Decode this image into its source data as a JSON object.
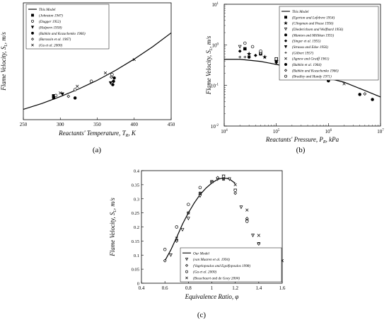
{
  "chart_data": [
    {
      "type": "scatter",
      "panel_label": "(a)",
      "xlabel": "Reactants' Temperature, T",
      "xlabel_sub": "R",
      "xlabel_unit": ", K",
      "ylabel": "Flame Velocity, S",
      "ylabel_sub": "L",
      "ylabel_unit": ", m/s",
      "xlim": [
        250,
        450
      ],
      "ylim": [
        0.2,
        0.9
      ],
      "xticks": [
        "250",
        "300",
        "350",
        "400",
        "450"
      ],
      "legend_position": "top-left",
      "series": [
        {
          "name": "This Model",
          "kind": "line",
          "x": [
            250,
            275,
            300,
            325,
            350,
            375,
            400,
            425,
            450
          ],
          "y": [
            0.262,
            0.297,
            0.338,
            0.384,
            0.436,
            0.496,
            0.563,
            0.637,
            0.72
          ]
        },
        {
          "name": "(Johnston 1947)",
          "marker": "square",
          "x": [
            291
          ],
          "y": [
            0.343
          ]
        },
        {
          "name": "(Dugger 1952)",
          "marker": "circle-open",
          "x": [
            294,
            320,
            342,
            370
          ],
          "y": [
            0.345,
            0.38,
            0.43,
            0.47
          ]
        },
        {
          "name": "(Halpern 1958)",
          "marker": "triangle-down",
          "x": [
            303,
            368
          ],
          "y": [
            0.353,
            0.42
          ]
        },
        {
          "name": "(Babkin and Kozachenko 1966)",
          "marker": "circle-filled",
          "x": [
            291,
            320,
            371,
            372,
            373
          ],
          "y": [
            0.33,
            0.33,
            0.41,
            0.43,
            0.45
          ]
        },
        {
          "name": "(Barassin et al. 1967)",
          "marker": "diamond-open",
          "x": [
            311,
            369
          ],
          "y": [
            0.34,
            0.455
          ]
        },
        {
          "name": "(Gu et al. 2000)",
          "marker": "x",
          "x": [
            300,
            323,
            361,
            400
          ],
          "y": [
            0.36,
            0.4,
            0.48,
            0.56
          ]
        }
      ]
    },
    {
      "type": "scatter",
      "panel_label": "(b)",
      "xlabel": "Reactants' Pressure, P",
      "xlabel_sub": "R",
      "xlabel_unit": ", kPa",
      "ylabel": "Flame Velocity, S",
      "ylabel_sub": "L",
      "ylabel_unit": ", m/s",
      "xscale": "log",
      "yscale": "log",
      "xlim": [
        10000,
        10000000
      ],
      "ylim": [
        0.01,
        10
      ],
      "xtick_exponents": [
        "4",
        "5",
        "6",
        "7"
      ],
      "ytick_exponents": [
        "-2",
        "-1",
        "0",
        "1"
      ],
      "legend_position": "top-right",
      "series": [
        {
          "name": "This Model",
          "kind": "line",
          "x": [
            10000,
            20000,
            50000,
            100000,
            200000,
            500000,
            1000000,
            2000000,
            5000000,
            10000000
          ],
          "y": [
            0.44,
            0.44,
            0.39,
            0.33,
            0.27,
            0.2,
            0.15,
            0.12,
            0.075,
            0.052
          ]
        },
        {
          "name": "(Egerton and Lefebvre 1954)",
          "marker": "square",
          "x": [
            25000,
            50000,
            100000,
            300000
          ],
          "y": [
            0.8,
            0.6,
            0.45,
            0.3
          ]
        },
        {
          "name": "(Clingman and Pease 1956)",
          "marker": "star",
          "x": [
            30000,
            60000,
            100000
          ],
          "y": [
            0.6,
            0.5,
            0.4
          ]
        },
        {
          "name": "(Diederichsen and Wolfhard 1956)",
          "marker": "triangle-down-open",
          "x": [
            20000,
            50000,
            100000
          ],
          "y": [
            0.9,
            0.6,
            0.45
          ]
        },
        {
          "name": "(Manton and Millikan 1955)",
          "marker": "circle-filled",
          "x": [
            30000,
            100000
          ],
          "y": [
            0.5,
            0.38
          ]
        },
        {
          "name": "(Singer et al. 1955)",
          "marker": "diamond-filled",
          "x": [
            20000,
            40000
          ],
          "y": [
            0.7,
            0.55
          ]
        },
        {
          "name": "(Strauss and Edse 1956)",
          "marker": "triangle-down",
          "x": [
            300000,
            1000000
          ],
          "y": [
            0.25,
            0.14
          ]
        },
        {
          "name": "(Gilbert 1957)",
          "marker": "plus",
          "x": [
            20000,
            25000
          ],
          "y": [
            0.5,
            0.5
          ]
        },
        {
          "name": "(Agnew and Graiff 1961)",
          "marker": "x",
          "x": [
            100000,
            500000,
            2000000
          ],
          "y": [
            0.35,
            0.2,
            0.11
          ]
        },
        {
          "name": "(Babkin et al. 1964)",
          "marker": "circle-filled",
          "x": [
            500000,
            1000000,
            4000000,
            7000000
          ],
          "y": [
            0.2,
            0.13,
            0.06,
            0.045
          ]
        },
        {
          "name": "(Babkin and Kozachenko 1966)",
          "marker": "diamond-open",
          "x": [
            200000,
            1000000,
            5000000
          ],
          "y": [
            0.32,
            0.14,
            0.062
          ]
        },
        {
          "name": "(Bradley and Hundy 1971)",
          "marker": "circle-open",
          "x": [
            25000,
            35000,
            50000,
            100000
          ],
          "y": [
            1.1,
            0.9,
            0.7,
            0.45
          ]
        }
      ]
    },
    {
      "type": "scatter",
      "panel_label": "(c)",
      "xlabel": "Equivalence Ratio, φ",
      "ylabel": "Flame Velocity, S",
      "ylabel_sub": "L",
      "ylabel_unit": ", m/s",
      "xlim": [
        0.4,
        1.6
      ],
      "ylim": [
        0,
        0.4
      ],
      "xticks": [
        "0.4",
        "0.6",
        "0.8",
        "1",
        "1.2",
        "1.4",
        "1.6"
      ],
      "yticks": [
        "0",
        "0.05",
        "0.1",
        "0.15",
        "0.2",
        "0.25",
        "0.3",
        "0.35",
        "0.4"
      ],
      "legend_position": "bottom-center",
      "series": [
        {
          "name": "Our Model",
          "kind": "line",
          "x": [
            0.6,
            0.65,
            0.7,
            0.75,
            0.8,
            0.85,
            0.9,
            0.95,
            1.0,
            1.05,
            1.1,
            1.15,
            1.2
          ],
          "y": [
            0.08,
            0.118,
            0.163,
            0.21,
            0.25,
            0.285,
            0.315,
            0.338,
            0.356,
            0.369,
            0.375,
            0.37,
            0.355
          ]
        },
        {
          "name": "(van Maaren et al. 1994)",
          "marker": "triangle-down-open",
          "x": [
            0.65,
            0.7,
            0.75,
            0.8,
            0.9,
            1.0,
            1.05,
            1.1,
            1.15,
            1.2,
            1.25,
            1.3,
            1.35,
            1.4,
            1.45,
            1.5
          ],
          "y": [
            0.1,
            0.15,
            0.19,
            0.23,
            0.31,
            0.36,
            0.37,
            0.38,
            0.37,
            0.33,
            0.27,
            0.22,
            0.17,
            0.14,
            0.11,
            0.09
          ]
        },
        {
          "name": "(Vagelopoulos and Egolfopoulos 1998)",
          "marker": "diamond-open",
          "x": [
            0.6,
            0.7,
            0.8,
            0.9,
            1.0,
            1.05,
            1.1,
            1.2,
            1.3,
            1.4
          ],
          "y": [
            0.08,
            0.15,
            0.25,
            0.32,
            0.36,
            0.375,
            0.37,
            0.32,
            0.23,
            0.14
          ]
        },
        {
          "name": "(Gu et al. 2000)",
          "marker": "circle-open",
          "x": [
            0.6,
            0.7,
            0.8,
            0.9,
            1.0,
            1.1,
            1.2,
            1.3
          ],
          "y": [
            0.12,
            0.2,
            0.28,
            0.34,
            0.36,
            0.38,
            0.33,
            0.22
          ]
        },
        {
          "name": "(Bosschaart and de Goey 2004)",
          "marker": "x",
          "x": [
            0.7,
            0.8,
            0.9,
            1.0,
            1.1,
            1.2,
            1.3,
            1.4,
            1.5,
            1.6
          ],
          "y": [
            0.16,
            0.25,
            0.32,
            0.36,
            0.37,
            0.35,
            0.26,
            0.17,
            0.11,
            0.08
          ]
        }
      ]
    }
  ]
}
